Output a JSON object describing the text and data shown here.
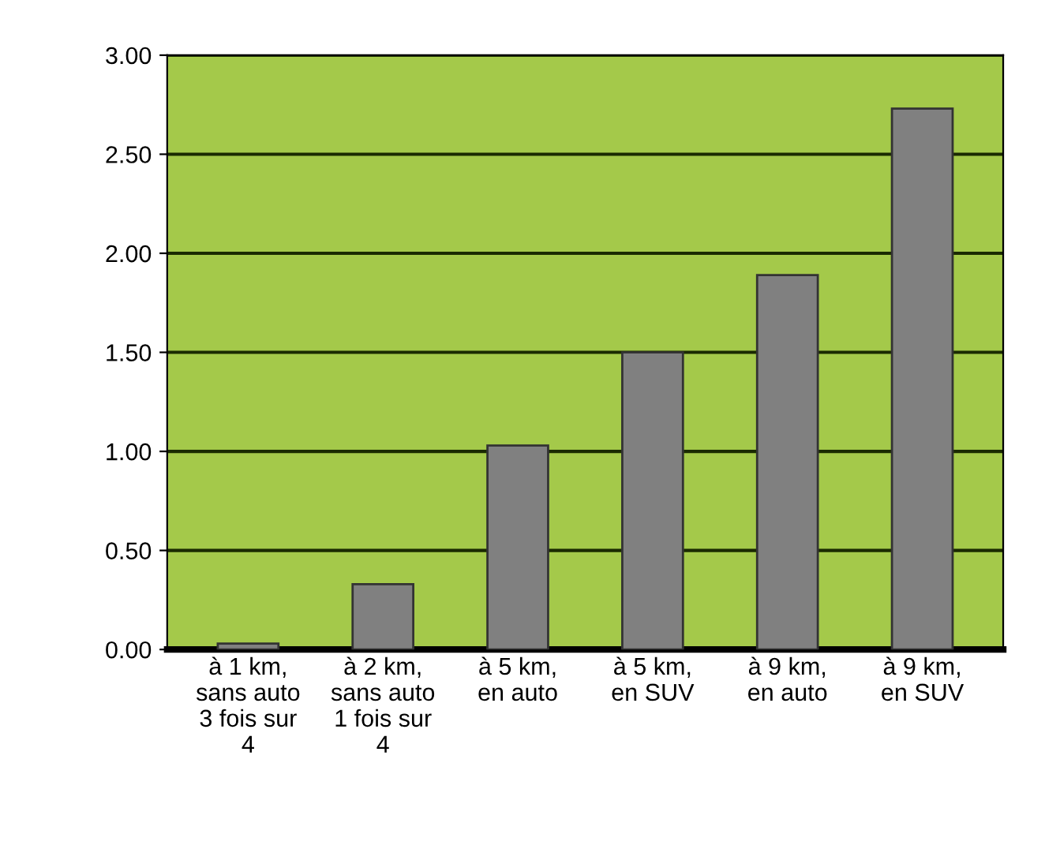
{
  "chart_data": {
    "type": "bar",
    "categories": [
      "à 1 km,\nsans auto\n3 fois sur\n4",
      "à 2 km,\nsans auto\n1 fois sur\n4",
      "à 5 km,\nen auto",
      "à 5 km,\nen SUV",
      "à 9 km,\nen auto",
      "à 9 km,\nen SUV"
    ],
    "values": [
      0.03,
      0.33,
      1.03,
      1.5,
      1.89,
      2.73
    ],
    "color": "#808080",
    "ylim": [
      0,
      3
    ],
    "yticks": [
      {
        "value": 0,
        "label": "0.00"
      },
      {
        "value": 0.5,
        "label": "0.50"
      },
      {
        "value": 1,
        "label": "1.00"
      },
      {
        "value": 1.5,
        "label": "1.50"
      },
      {
        "value": 2,
        "label": "2.00"
      },
      {
        "value": 2.5,
        "label": "2.50"
      },
      {
        "value": 3,
        "label": "3.00"
      }
    ],
    "grid": "y"
  }
}
